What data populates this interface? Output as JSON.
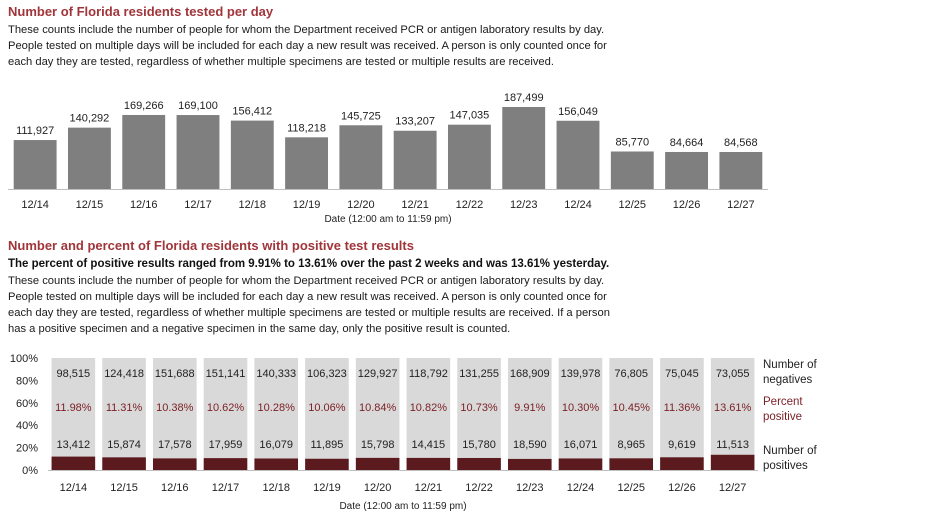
{
  "section1": {
    "title": "Number of Florida residents tested per day",
    "desc_lines": [
      "These counts include the number of people for whom the Department received PCR or antigen laboratory results by day.",
      "People tested on multiple days will be included for each day a new result was received. A person is only counted once for",
      "each day they are tested, regardless of whether multiple specimens are tested or multiple results are received."
    ]
  },
  "section2": {
    "title": "Number and percent of Florida residents with positive test results",
    "summary": "The percent of positive results ranged from 9.91% to 13.61% over the past 2 weeks and was 13.61% yesterday.",
    "desc_lines": [
      "These counts include the number of people for whom the Department received PCR or antigen laboratory results by day.",
      "People tested on multiple days will be included for each day a new result was received. A person is only counted once for",
      "each day they are tested, regardless of whether multiple specimens are tested or multiple results are received. If a person",
      "has a positive specimen and a negative specimen in the same day, only the positive result is counted."
    ]
  },
  "colors": {
    "title": "#a0353a",
    "bar": "#7f7f7f",
    "negatives": "#d9d9d9",
    "positives": "#5b1a1d",
    "percent_text": "#7b1f24"
  },
  "chart_data": [
    {
      "type": "bar",
      "categories": [
        "12/14",
        "12/15",
        "12/16",
        "12/17",
        "12/18",
        "12/19",
        "12/20",
        "12/21",
        "12/22",
        "12/23",
        "12/24",
        "12/25",
        "12/26",
        "12/27"
      ],
      "values": [
        111927,
        140292,
        169266,
        169100,
        156412,
        118218,
        145725,
        133207,
        147035,
        187499,
        156049,
        85770,
        84664,
        84568
      ],
      "labels": [
        "111,927",
        "140,292",
        "169,266",
        "169,100",
        "156,412",
        "118,218",
        "145,725",
        "133,207",
        "147,035",
        "187,499",
        "156,049",
        "85,770",
        "84,664",
        "84,568"
      ],
      "xlabel": "Date (12:00 am to 11:59 pm)",
      "ylim": [
        0,
        190000
      ]
    },
    {
      "type": "bar",
      "stacked": "percent",
      "categories": [
        "12/14",
        "12/15",
        "12/16",
        "12/17",
        "12/18",
        "12/19",
        "12/20",
        "12/21",
        "12/22",
        "12/23",
        "12/24",
        "12/25",
        "12/26",
        "12/27"
      ],
      "series": [
        {
          "name": "Number of positives",
          "values": [
            13412,
            15874,
            17578,
            17959,
            16079,
            11895,
            15798,
            14415,
            15780,
            18590,
            16071,
            8965,
            9619,
            11513
          ],
          "labels": [
            "13,412",
            "15,874",
            "17,578",
            "17,959",
            "16,079",
            "11,895",
            "15,798",
            "14,415",
            "15,780",
            "18,590",
            "16,071",
            "8,965",
            "9,619",
            "11,513"
          ]
        },
        {
          "name": "Number of negatives",
          "values": [
            98515,
            124418,
            151688,
            151141,
            140333,
            106323,
            129927,
            118792,
            131255,
            168909,
            139978,
            76805,
            75045,
            73055
          ],
          "labels": [
            "98,515",
            "124,418",
            "151,688",
            "151,141",
            "140,333",
            "106,323",
            "129,927",
            "118,792",
            "131,255",
            "168,909",
            "139,978",
            "76,805",
            "75,045",
            "73,055"
          ]
        }
      ],
      "percent_positive": [
        "11.98%",
        "11.31%",
        "10.38%",
        "10.62%",
        "10.28%",
        "10.06%",
        "10.84%",
        "10.82%",
        "10.73%",
        "9.91%",
        "10.30%",
        "10.45%",
        "11.36%",
        "13.61%"
      ],
      "legend": {
        "negatives": [
          "Number of",
          "negatives"
        ],
        "percent": [
          "Percent",
          "positive"
        ],
        "positives": [
          "Number of",
          "positives"
        ]
      },
      "yticks": [
        "100%",
        "80%",
        "60%",
        "40%",
        "20%",
        "0%"
      ],
      "xlabel": "Date (12:00 am to 11:59 pm)",
      "ylim": [
        0,
        100
      ]
    }
  ]
}
